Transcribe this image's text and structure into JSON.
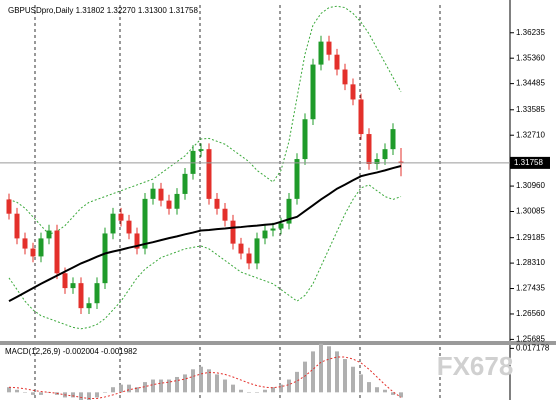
{
  "chart_data": {
    "type": "candlestick",
    "title": "GBPUSDpro,Daily 1.31802 1.32270 1.31300 1.31758",
    "up_color": "#1f9b2a",
    "down_color": "#e3302b",
    "ylim": [
      1.2563,
      1.3719
    ],
    "yticks": [
      1.36235,
      {
        "value": 1.3536,
        "label": "1.35360"
      },
      1.34485,
      1.33585,
      {
        "value": 1.3271,
        "label": "1.32710"
      },
      {
        "value": 1.3096,
        "label": "1.30960"
      },
      1.30085,
      1.29185,
      {
        "value": 1.2831,
        "label": "1.28310"
      },
      1.27435,
      {
        "value": 1.2656,
        "label": "1.26560"
      },
      1.25685
    ],
    "open": [
      1.305,
      1.3001,
      1.2916,
      1.2881,
      1.2854,
      1.2916,
      1.2943,
      1.2796,
      1.2745,
      1.2762,
      1.2676,
      1.2693,
      1.2762,
      1.2933,
      1.3001,
      1.2977,
      1.2933,
      1.2881,
      1.3052,
      1.3087,
      1.3046,
      1.3018,
      1.3069,
      1.3138,
      1.3217,
      1.3223,
      1.3052,
      1.3018,
      1.2977,
      1.2898,
      1.2864,
      1.283,
      1.2916,
      1.2943,
      1.295,
      1.2967,
      1.3052,
      1.3189,
      1.3326,
      1.3514,
      1.3593,
      1.3548,
      1.3497,
      1.3446,
      1.3394,
      1.3275,
      1.3172,
      1.3189,
      1.3223,
      1.31802
    ],
    "high": [
      1.307,
      1.3021,
      1.2936,
      1.2901,
      1.2936,
      1.2963,
      1.2963,
      1.2816,
      1.2782,
      1.2782,
      1.2713,
      1.2782,
      1.2953,
      1.3021,
      1.3021,
      1.2997,
      1.2953,
      1.3072,
      1.3107,
      1.3107,
      1.3066,
      1.3089,
      1.3158,
      1.3237,
      1.3243,
      1.3243,
      1.3072,
      1.3038,
      1.2997,
      1.2918,
      1.2884,
      1.2936,
      1.2963,
      1.297,
      1.2987,
      1.3072,
      1.3209,
      1.3346,
      1.3534,
      1.3613,
      1.3613,
      1.3568,
      1.3517,
      1.3466,
      1.3414,
      1.3295,
      1.3209,
      1.3243,
      1.3312,
      1.3227
    ],
    "low": [
      1.2981,
      1.2896,
      1.2861,
      1.2834,
      1.2834,
      1.2896,
      1.2776,
      1.2725,
      1.2725,
      1.2656,
      1.2656,
      1.2673,
      1.2742,
      1.2913,
      1.2957,
      1.2913,
      1.2861,
      1.2861,
      1.3032,
      1.3026,
      1.2998,
      1.2998,
      1.3049,
      1.3118,
      1.3197,
      1.3032,
      1.2998,
      1.2957,
      1.2878,
      1.2844,
      1.281,
      1.281,
      1.2896,
      1.2923,
      1.293,
      1.2947,
      1.3032,
      1.3169,
      1.3306,
      1.3494,
      1.3528,
      1.3477,
      1.3426,
      1.3374,
      1.3255,
      1.3152,
      1.3152,
      1.3169,
      1.3203,
      1.313
    ],
    "close": [
      1.3001,
      1.2916,
      1.2881,
      1.2854,
      1.2916,
      1.2943,
      1.2796,
      1.2745,
      1.2762,
      1.2676,
      1.2693,
      1.2762,
      1.2933,
      1.3001,
      1.2977,
      1.2933,
      1.2881,
      1.3052,
      1.3087,
      1.3046,
      1.3018,
      1.3069,
      1.3138,
      1.3217,
      1.3223,
      1.3052,
      1.3018,
      1.2977,
      1.2898,
      1.2864,
      1.283,
      1.2916,
      1.2943,
      1.295,
      1.2967,
      1.3052,
      1.3189,
      1.3326,
      1.3514,
      1.3593,
      1.3548,
      1.3497,
      1.3446,
      1.3394,
      1.3275,
      1.3172,
      1.3189,
      1.3223,
      1.3292,
      1.31758
    ],
    "ma": {
      "color": "#000000",
      "values": [
        1.27,
        1.2715,
        1.273,
        1.2745,
        1.276,
        1.2774,
        1.2788,
        1.2802,
        1.2816,
        1.283,
        1.2841,
        1.2853,
        1.2864,
        1.2871,
        1.2877,
        1.2884,
        1.289,
        1.2897,
        1.2903,
        1.291,
        1.2917,
        1.2923,
        1.293,
        1.2936,
        1.2943,
        1.2945,
        1.2948,
        1.295,
        1.2953,
        1.2955,
        1.2958,
        1.296,
        1.2963,
        1.2965,
        1.2973,
        1.2982,
        1.299,
        1.301,
        1.303,
        1.305,
        1.3068,
        1.3087,
        1.3101,
        1.3116,
        1.313,
        1.3137,
        1.3143,
        1.315,
        1.3158,
        1.3165
      ]
    },
    "bands": {
      "color": "#3aa83a",
      "upper": [
        1.305,
        1.304,
        1.302,
        1.299,
        1.296,
        1.293,
        1.294,
        1.296,
        1.299,
        1.302,
        1.304,
        1.305,
        1.306,
        1.307,
        1.308,
        1.309,
        1.31,
        1.311,
        1.312,
        1.314,
        1.316,
        1.318,
        1.32,
        1.323,
        1.3258,
        1.326,
        1.325,
        1.324,
        1.322,
        1.32,
        1.318,
        1.315,
        1.313,
        1.311,
        1.315,
        1.325,
        1.34,
        1.355,
        1.365,
        1.369,
        1.371,
        1.3715,
        1.371,
        1.369,
        1.366,
        1.362,
        1.357,
        1.352,
        1.347,
        1.342
      ],
      "lower": [
        1.278,
        1.274,
        1.27,
        1.267,
        1.265,
        1.264,
        1.263,
        1.262,
        1.261,
        1.2605,
        1.261,
        1.262,
        1.264,
        1.267,
        1.27,
        1.274,
        1.278,
        1.281,
        1.283,
        1.285,
        1.286,
        1.287,
        1.288,
        1.2885,
        1.289,
        1.288,
        1.286,
        1.284,
        1.282,
        1.28,
        1.279,
        1.278,
        1.277,
        1.276,
        1.274,
        1.272,
        1.27,
        1.272,
        1.276,
        1.282,
        1.288,
        1.294,
        1.3,
        1.305,
        1.309,
        1.31,
        1.308,
        1.306,
        1.305,
        1.306
      ]
    },
    "macd": {
      "title": "MACD(12,26,9) -0.002004 -0.001982",
      "ylim": [
        -0.003,
        0.0185
      ],
      "yticks": [
        0.017178
      ],
      "histogram": {
        "color": "#b0b0b0",
        "values": [
          0.002,
          0.001,
          0,
          -0.001,
          -0.001,
          0,
          -0.001,
          -0.002,
          -0.002,
          -0.003,
          -0.003,
          -0.002,
          0,
          0.002,
          0.003,
          0.003,
          0.002,
          0.004,
          0.005,
          0.005,
          0.005,
          0.006,
          0.007,
          0.009,
          0.01,
          0.009,
          0.007,
          0.005,
          0.003,
          0.001,
          0,
          0,
          0.001,
          0.002,
          0.003,
          0.005,
          0.008,
          0.012,
          0.016,
          0.019,
          0.018,
          0.016,
          0.013,
          0.01,
          0.007,
          0.004,
          0.002,
          0.001,
          -0.001,
          -0.002004
        ]
      },
      "signal": {
        "color": "#e3302b",
        "values": [
          0.002,
          0.0018,
          0.0014,
          0.0008,
          0.0003,
          0,
          -0.0004,
          -0.001,
          -0.0014,
          -0.002,
          -0.0024,
          -0.0024,
          -0.0018,
          -0.001,
          0,
          0.001,
          0.0016,
          0.0022,
          0.003,
          0.0036,
          0.004,
          0.0046,
          0.0052,
          0.0062,
          0.0072,
          0.0078,
          0.0076,
          0.007,
          0.006,
          0.0048,
          0.0036,
          0.0026,
          0.002,
          0.0018,
          0.0022,
          0.003,
          0.0044,
          0.0064,
          0.009,
          0.0118,
          0.013,
          0.0138,
          0.0138,
          0.013,
          0.0115,
          0.009,
          0.006,
          0.003,
          0.0002,
          -0.001982
        ]
      }
    },
    "watermark": "FX678"
  }
}
